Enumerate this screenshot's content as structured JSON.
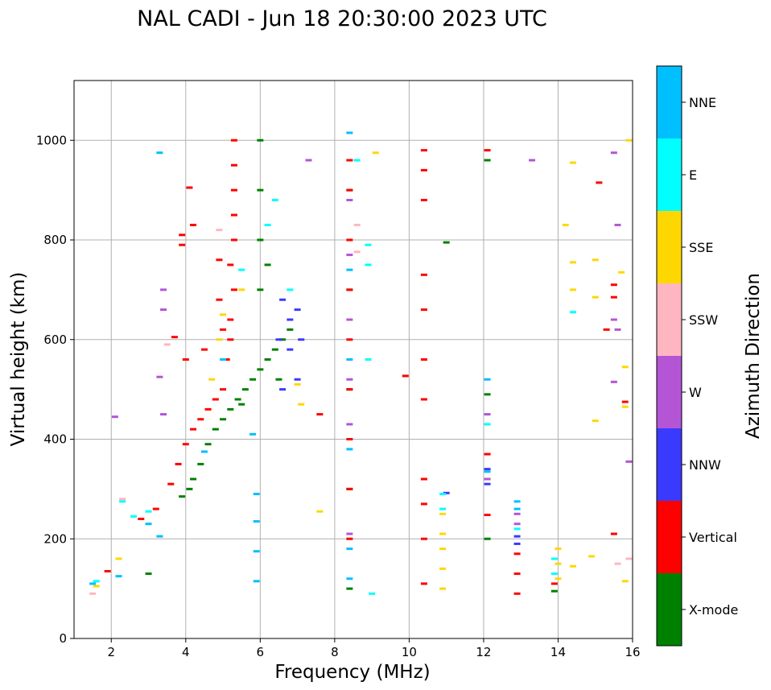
{
  "chart_data": {
    "type": "scatter",
    "title": "NAL CADI - Jun 18 20:30:00 2023 UTC",
    "xlabel": "Frequency (MHz)",
    "ylabel": "Virtual height (km)",
    "xlim": [
      1,
      16
    ],
    "ylim": [
      0,
      1120
    ],
    "xticks": [
      2,
      4,
      6,
      8,
      10,
      12,
      14,
      16
    ],
    "yticks": [
      0,
      200,
      400,
      600,
      800,
      1000
    ],
    "grid": true,
    "colorbar": {
      "label": "Azimuth Direction",
      "categories": [
        {
          "name": "X-mode",
          "color": "#008000"
        },
        {
          "name": "Vertical",
          "color": "#ff0000"
        },
        {
          "name": "NNW",
          "color": "#3a3aff"
        },
        {
          "name": "W",
          "color": "#b455d6"
        },
        {
          "name": "SSW",
          "color": "#ffb6c1"
        },
        {
          "name": "SSE",
          "color": "#ffd700"
        },
        {
          "name": "E",
          "color": "#00ffff"
        },
        {
          "name": "NNE",
          "color": "#00bfff"
        }
      ]
    },
    "series": [
      {
        "name": "X-mode",
        "points": [
          [
            3.9,
            285
          ],
          [
            4.1,
            300
          ],
          [
            4.2,
            320
          ],
          [
            4.4,
            350
          ],
          [
            4.6,
            390
          ],
          [
            4.8,
            420
          ],
          [
            5.0,
            440
          ],
          [
            5.2,
            460
          ],
          [
            5.4,
            480
          ],
          [
            5.6,
            500
          ],
          [
            5.8,
            520
          ],
          [
            6.0,
            540
          ],
          [
            6.2,
            560
          ],
          [
            6.4,
            580
          ],
          [
            6.6,
            600
          ],
          [
            6.8,
            620
          ],
          [
            6.0,
            700
          ],
          [
            6.2,
            750
          ],
          [
            6.0,
            800
          ],
          [
            6.0,
            900
          ],
          [
            6.0,
            1000
          ],
          [
            8.4,
            100
          ],
          [
            8.4,
            300
          ],
          [
            8.4,
            500
          ],
          [
            8.4,
            700
          ],
          [
            8.4,
            900
          ],
          [
            11.0,
            795
          ],
          [
            12.1,
            200
          ],
          [
            12.1,
            490
          ],
          [
            12.1,
            960
          ],
          [
            13.9,
            95
          ],
          [
            3.0,
            130
          ],
          [
            5.5,
            470
          ],
          [
            6.5,
            520
          ]
        ]
      },
      {
        "name": "Vertical",
        "points": [
          [
            1.9,
            135
          ],
          [
            2.8,
            240
          ],
          [
            3.2,
            260
          ],
          [
            3.6,
            310
          ],
          [
            3.8,
            350
          ],
          [
            4.0,
            390
          ],
          [
            4.2,
            420
          ],
          [
            4.4,
            440
          ],
          [
            4.6,
            460
          ],
          [
            4.8,
            480
          ],
          [
            5.0,
            500
          ],
          [
            5.1,
            560
          ],
          [
            5.2,
            600
          ],
          [
            5.2,
            640
          ],
          [
            5.3,
            700
          ],
          [
            5.2,
            750
          ],
          [
            5.3,
            800
          ],
          [
            5.3,
            850
          ],
          [
            5.3,
            900
          ],
          [
            5.3,
            950
          ],
          [
            5.3,
            1000
          ],
          [
            3.9,
            790
          ],
          [
            3.9,
            810
          ],
          [
            4.2,
            830
          ],
          [
            4.1,
            905
          ],
          [
            4.0,
            560
          ],
          [
            4.5,
            580
          ],
          [
            4.9,
            760
          ],
          [
            3.7,
            605
          ],
          [
            4.9,
            680
          ],
          [
            5.0,
            620
          ],
          [
            8.4,
            200
          ],
          [
            8.4,
            300
          ],
          [
            8.4,
            400
          ],
          [
            8.4,
            500
          ],
          [
            8.4,
            600
          ],
          [
            8.4,
            700
          ],
          [
            8.4,
            800
          ],
          [
            8.4,
            900
          ],
          [
            8.4,
            960
          ],
          [
            10.4,
            110
          ],
          [
            10.4,
            200
          ],
          [
            10.4,
            270
          ],
          [
            10.4,
            320
          ],
          [
            10.4,
            480
          ],
          [
            10.4,
            560
          ],
          [
            10.4,
            660
          ],
          [
            10.4,
            730
          ],
          [
            10.4,
            880
          ],
          [
            10.4,
            940
          ],
          [
            10.4,
            980
          ],
          [
            9.9,
            527
          ],
          [
            12.1,
            248
          ],
          [
            12.1,
            370
          ],
          [
            12.1,
            980
          ],
          [
            12.9,
            90
          ],
          [
            12.9,
            130
          ],
          [
            12.9,
            170
          ],
          [
            13.9,
            110
          ],
          [
            15.1,
            915
          ],
          [
            15.5,
            710
          ],
          [
            15.5,
            685
          ],
          [
            15.5,
            210
          ],
          [
            15.3,
            620
          ],
          [
            15.8,
            475
          ],
          [
            7.6,
            450
          ]
        ]
      },
      {
        "name": "NNW",
        "points": [
          [
            6.6,
            680
          ],
          [
            6.8,
            640
          ],
          [
            7.0,
            660
          ],
          [
            6.5,
            600
          ],
          [
            6.8,
            580
          ],
          [
            7.0,
            520
          ],
          [
            6.6,
            500
          ],
          [
            7.1,
            600
          ],
          [
            12.1,
            310
          ],
          [
            12.1,
            340
          ],
          [
            12.9,
            190
          ],
          [
            12.9,
            205
          ],
          [
            11.0,
            292
          ]
        ]
      },
      {
        "name": "W",
        "points": [
          [
            2.1,
            445
          ],
          [
            3.4,
            450
          ],
          [
            3.4,
            700
          ],
          [
            3.4,
            660
          ],
          [
            3.3,
            525
          ],
          [
            8.4,
            210
          ],
          [
            8.4,
            430
          ],
          [
            8.4,
            520
          ],
          [
            8.4,
            640
          ],
          [
            8.4,
            770
          ],
          [
            8.4,
            880
          ],
          [
            12.1,
            450
          ],
          [
            12.1,
            320
          ],
          [
            12.9,
            230
          ],
          [
            12.9,
            250
          ],
          [
            13.3,
            960
          ],
          [
            15.5,
            975
          ],
          [
            15.6,
            830
          ],
          [
            15.5,
            640
          ],
          [
            15.6,
            620
          ],
          [
            15.5,
            515
          ],
          [
            15.9,
            355
          ],
          [
            7.3,
            960
          ]
        ]
      },
      {
        "name": "SSW",
        "points": [
          [
            1.5,
            90
          ],
          [
            2.3,
            280
          ],
          [
            3.5,
            590
          ],
          [
            8.6,
            830
          ],
          [
            8.6,
            776
          ],
          [
            15.6,
            150
          ],
          [
            15.9,
            160
          ],
          [
            4.9,
            820
          ]
        ]
      },
      {
        "name": "SSE",
        "points": [
          [
            1.6,
            105
          ],
          [
            2.2,
            160
          ],
          [
            4.7,
            520
          ],
          [
            4.9,
            600
          ],
          [
            5.0,
            650
          ],
          [
            5.5,
            700
          ],
          [
            7.0,
            510
          ],
          [
            7.1,
            470
          ],
          [
            7.6,
            255
          ],
          [
            9.1,
            975
          ],
          [
            10.9,
            100
          ],
          [
            10.9,
            140
          ],
          [
            10.9,
            180
          ],
          [
            10.9,
            210
          ],
          [
            10.9,
            250
          ],
          [
            14.0,
            180
          ],
          [
            14.0,
            150
          ],
          [
            14.0,
            120
          ],
          [
            14.4,
            145
          ],
          [
            14.4,
            700
          ],
          [
            14.4,
            755
          ],
          [
            14.4,
            955
          ],
          [
            14.2,
            830
          ],
          [
            14.9,
            165
          ],
          [
            15.0,
            437
          ],
          [
            15.0,
            760
          ],
          [
            15.0,
            685
          ],
          [
            15.7,
            735
          ],
          [
            15.8,
            115
          ],
          [
            15.9,
            1000
          ],
          [
            15.8,
            545
          ],
          [
            15.8,
            465
          ]
        ]
      },
      {
        "name": "E",
        "points": [
          [
            1.6,
            115
          ],
          [
            2.3,
            275
          ],
          [
            2.6,
            245
          ],
          [
            3.0,
            255
          ],
          [
            5.5,
            740
          ],
          [
            6.2,
            830
          ],
          [
            6.4,
            880
          ],
          [
            6.8,
            700
          ],
          [
            9.0,
            90
          ],
          [
            8.9,
            560
          ],
          [
            8.9,
            790
          ],
          [
            8.9,
            750
          ],
          [
            8.6,
            960
          ],
          [
            10.9,
            290
          ],
          [
            10.9,
            260
          ],
          [
            12.9,
            220
          ],
          [
            13.9,
            160
          ],
          [
            13.9,
            130
          ],
          [
            14.4,
            655
          ],
          [
            12.1,
            430
          ]
        ]
      },
      {
        "name": "NNE",
        "points": [
          [
            1.5,
            110
          ],
          [
            2.2,
            125
          ],
          [
            3.0,
            230
          ],
          [
            3.3,
            205
          ],
          [
            3.3,
            975
          ],
          [
            4.5,
            375
          ],
          [
            5.0,
            560
          ],
          [
            5.9,
            175
          ],
          [
            5.9,
            290
          ],
          [
            5.9,
            235
          ],
          [
            5.9,
            115
          ],
          [
            5.8,
            410
          ],
          [
            8.4,
            120
          ],
          [
            8.4,
            180
          ],
          [
            8.4,
            380
          ],
          [
            8.4,
            560
          ],
          [
            8.4,
            740
          ],
          [
            8.4,
            1015
          ],
          [
            12.1,
            335
          ],
          [
            12.1,
            520
          ],
          [
            12.9,
            275
          ],
          [
            12.9,
            260
          ]
        ]
      }
    ]
  }
}
